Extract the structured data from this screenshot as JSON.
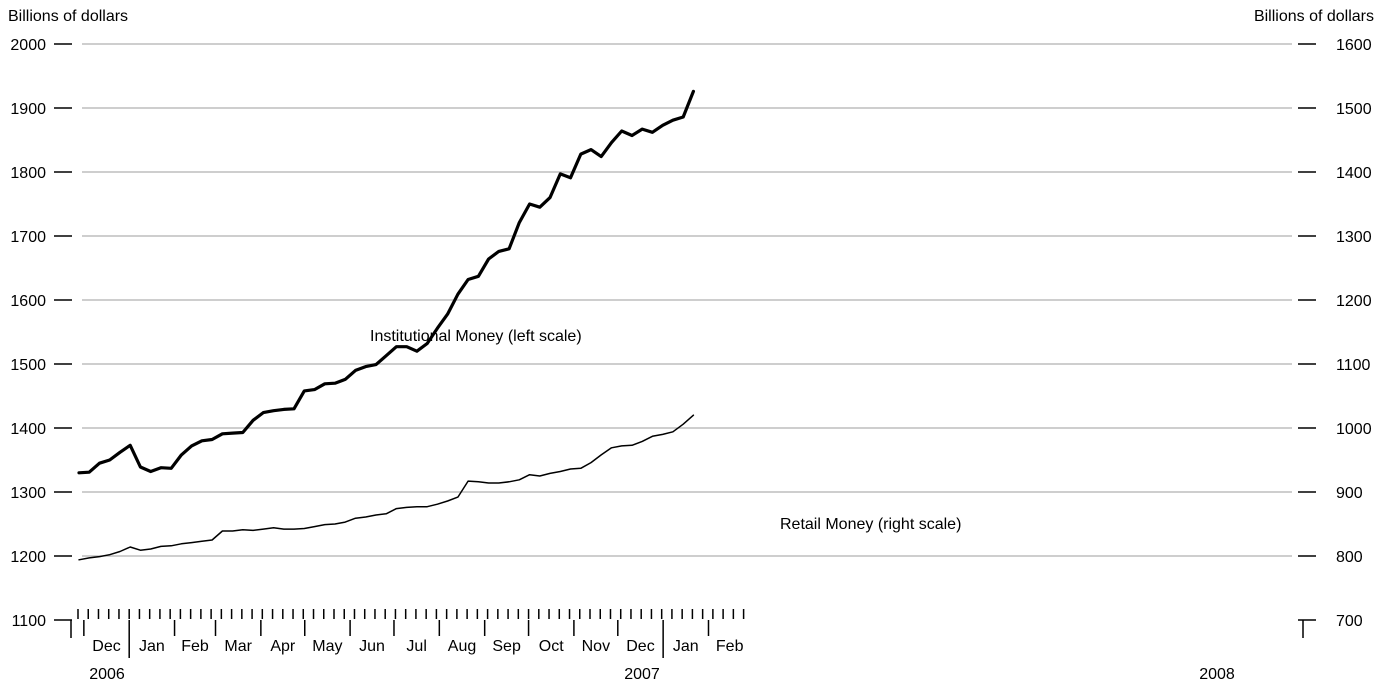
{
  "chart_data": {
    "type": "line",
    "left_axis_label": "Billions of dollars",
    "right_axis_label": "Billions of dollars",
    "left_ylim": [
      1100,
      2000
    ],
    "right_ylim": [
      700,
      1600
    ],
    "left_ticks": [
      1100,
      1200,
      1300,
      1400,
      1500,
      1600,
      1700,
      1800,
      1900,
      2000
    ],
    "right_ticks": [
      700,
      800,
      900,
      1000,
      1100,
      1200,
      1300,
      1400,
      1500,
      1600
    ],
    "grid": true,
    "months": [
      "Dec",
      "Jan",
      "Feb",
      "Mar",
      "Apr",
      "May",
      "Jun",
      "Jul",
      "Aug",
      "Sep",
      "Oct",
      "Nov",
      "Dec",
      "Jan",
      "Feb"
    ],
    "years": [
      "2006",
      "2007",
      "2008"
    ],
    "x_weeks": [
      "2006-11-27",
      "2006-12-04",
      "2006-12-11",
      "2006-12-18",
      "2006-12-25",
      "2007-01-01",
      "2007-01-08",
      "2007-01-15",
      "2007-01-22",
      "2007-01-29",
      "2007-02-05",
      "2007-02-12",
      "2007-02-19",
      "2007-02-26",
      "2007-03-05",
      "2007-03-12",
      "2007-03-19",
      "2007-03-26",
      "2007-04-02",
      "2007-04-09",
      "2007-04-16",
      "2007-04-23",
      "2007-04-30",
      "2007-05-07",
      "2007-05-14",
      "2007-05-21",
      "2007-05-28",
      "2007-06-04",
      "2007-06-11",
      "2007-06-18",
      "2007-06-25",
      "2007-07-02",
      "2007-07-09",
      "2007-07-16",
      "2007-07-23",
      "2007-07-30",
      "2007-08-06",
      "2007-08-13",
      "2007-08-20",
      "2007-08-27",
      "2007-09-03",
      "2007-09-10",
      "2007-09-17",
      "2007-09-24",
      "2007-10-01",
      "2007-10-08",
      "2007-10-15",
      "2007-10-22",
      "2007-10-29",
      "2007-11-05",
      "2007-11-12",
      "2007-11-19",
      "2007-11-26",
      "2007-12-03",
      "2007-12-10",
      "2007-12-17",
      "2007-12-24",
      "2007-12-31",
      "2008-01-07",
      "2008-01-14",
      "2008-01-21",
      "2008-01-28"
    ],
    "series": [
      {
        "name": "Institutional Money (left scale)",
        "axis": "left",
        "color": "#000000",
        "values": [
          1330,
          1331,
          1345,
          1350,
          1362,
          1373,
          1339,
          1332,
          1338,
          1337,
          1358,
          1372,
          1380,
          1382,
          1391,
          1392,
          1393,
          1412,
          1424,
          1427,
          1429,
          1430,
          1458,
          1460,
          1469,
          1470,
          1476,
          1490,
          1496,
          1499,
          1513,
          1527,
          1527,
          1520,
          1532,
          1556,
          1578,
          1609,
          1632,
          1637,
          1664,
          1676,
          1680,
          1721,
          1750,
          1745,
          1760,
          1797,
          1791,
          1828,
          1835,
          1824,
          1846,
          1864,
          1857,
          1867,
          1862,
          1873,
          1881,
          1886,
          1926,
          null
        ]
      },
      {
        "name": "Retail Money (right scale)",
        "axis": "right",
        "color": "#000000",
        "values": [
          794,
          797,
          799,
          802,
          807,
          814,
          809,
          811,
          815,
          816,
          819,
          821,
          823,
          825,
          839,
          839,
          841,
          840,
          842,
          844,
          842,
          842,
          843,
          846,
          849,
          850,
          853,
          859,
          861,
          864,
          866,
          874,
          876,
          877,
          877,
          881,
          886,
          892,
          917,
          916,
          914,
          914,
          916,
          919,
          927,
          925,
          929,
          932,
          936,
          937,
          946,
          958,
          969,
          972,
          973,
          979,
          987,
          990,
          994,
          1006,
          1020,
          null
        ]
      }
    ]
  }
}
